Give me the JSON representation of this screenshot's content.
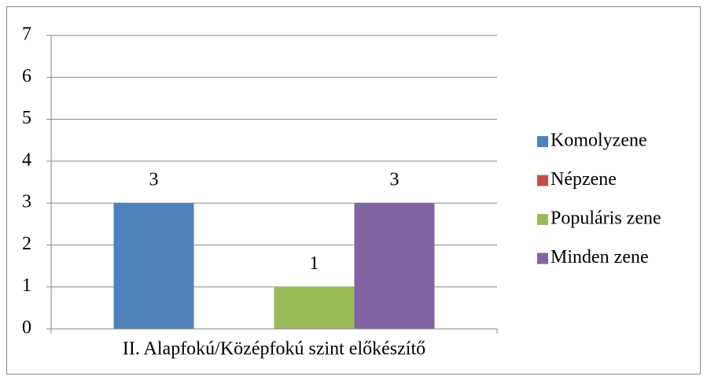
{
  "chart_data": {
    "type": "bar",
    "categories": [
      "II. Alapfokú/Középfokú szint előkészítő"
    ],
    "series": [
      {
        "name": "Komolyzene",
        "color": "#4f81bd",
        "values": [
          3
        ]
      },
      {
        "name": "Népzene",
        "color": "#c0504d",
        "values": [
          0
        ]
      },
      {
        "name": "Populáris zene",
        "color": "#9bbb59",
        "values": [
          1
        ]
      },
      {
        "name": "Minden zene",
        "color": "#8064a2",
        "values": [
          3
        ]
      }
    ],
    "ylim": [
      0,
      7
    ],
    "yticks": [
      0,
      1,
      2,
      3,
      4,
      5,
      6,
      7
    ],
    "grid": true,
    "legend": "right"
  }
}
